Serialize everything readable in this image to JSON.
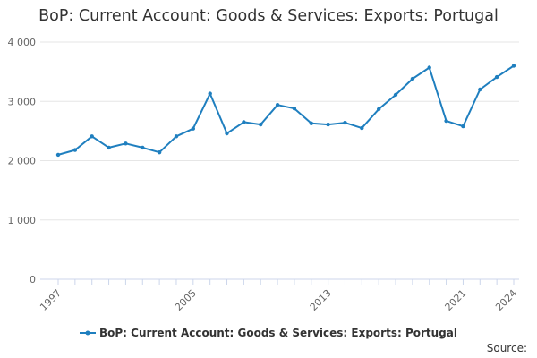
{
  "chart_data": {
    "type": "line",
    "title": "BoP: Current Account: Goods & Services: Exports: Portugal",
    "xlabel": "",
    "ylabel": "",
    "x": [
      1997,
      1998,
      1999,
      2000,
      2001,
      2002,
      2003,
      2004,
      2005,
      2006,
      2007,
      2008,
      2009,
      2010,
      2011,
      2012,
      2013,
      2014,
      2015,
      2016,
      2017,
      2018,
      2019,
      2020,
      2021,
      2022,
      2023,
      2024
    ],
    "series": [
      {
        "name": "BoP: Current Account: Goods & Services: Exports: Portugal",
        "color": "#1f7fbf",
        "values": [
          2100,
          2180,
          2410,
          2220,
          2290,
          2220,
          2140,
          2410,
          2540,
          3130,
          2460,
          2650,
          2610,
          2940,
          2880,
          2630,
          2610,
          2640,
          2550,
          2870,
          3110,
          3380,
          3570,
          2670,
          2580,
          3200,
          3410,
          3600
        ]
      }
    ],
    "x_tick_labels": [
      "1997",
      "2005",
      "2013",
      "2021",
      "2024"
    ],
    "y_tick_labels": [
      "0",
      "1 000",
      "2 000",
      "3 000",
      "4 000"
    ],
    "xlim": [
      1997,
      2024
    ],
    "ylim": [
      0,
      4000
    ],
    "grid": "horizontal",
    "legend_position": "bottom"
  },
  "source_label": "Source:"
}
